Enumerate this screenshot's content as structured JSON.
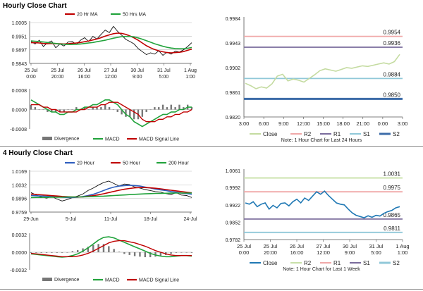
{
  "colors": {
    "ma20": "#c00000",
    "ma50": "#22a33c",
    "ma200": "#22a33c",
    "price_top": "#111111",
    "price_bottom": "#111111",
    "macd": "#22a33c",
    "signal": "#c00000",
    "divergence": "#777777",
    "close_line": "#c4dba0",
    "r2": "#f0a8a8",
    "r1": "#7a6c9c",
    "s1": "#90c8d8",
    "s2": "#3c6ca8",
    "close_line_week": "#1f78b4",
    "r2_week": "#c8e0a8",
    "r1_week": "#f0a8a8",
    "s1_week": "#7a6c9c",
    "s2_week": "#90c8d8",
    "grid": "#bbbbbb"
  },
  "hourly": {
    "title": "Hourly Close Chart",
    "price_chart": {
      "legend": [
        "20 Hr MA",
        "50 Hrs MA"
      ],
      "y_ticks": [
        "1.0005",
        "0.9951",
        "0.9897",
        "0.9843"
      ],
      "ylim": [
        0.9843,
        1.0005
      ],
      "x_ticks": [
        [
          "25 Jul",
          "0:00"
        ],
        [
          "25 Jul",
          "20:00"
        ],
        [
          "26 Jul",
          "16:00"
        ],
        [
          "27 Jul",
          "12:00"
        ],
        [
          "30 Jul",
          "9:00"
        ],
        [
          "31 Jul",
          "5:00"
        ],
        [
          "1 Aug",
          "1:00"
        ]
      ],
      "chart_data": {
        "type": "line",
        "series": [
          {
            "name": "Close",
            "values": [
              0.993,
              0.992,
              0.9935,
              0.991,
              0.9925,
              0.9932,
              0.9905,
              0.992,
              0.9912,
              0.9928,
              0.993,
              0.9918,
              0.9935,
              0.9945,
              0.993,
              0.995,
              0.994,
              0.9958,
              0.9975,
              0.9965,
              0.999,
              0.997,
              0.9955,
              0.9938,
              0.993,
              0.992,
              0.9902,
              0.989,
              0.9878,
              0.9885,
              0.988,
              0.9893,
              0.9875,
              0.9887,
              0.988,
              0.9892,
              0.9888,
              0.9897,
              0.991,
              0.9925
            ]
          },
          {
            "name": "20 Hr MA",
            "values": [
              0.9925,
              0.9925,
              0.9924,
              0.9922,
              0.9921,
              0.9922,
              0.9921,
              0.9921,
              0.992,
              0.9921,
              0.9923,
              0.9924,
              0.9926,
              0.9929,
              0.9932,
              0.9936,
              0.994,
              0.9945,
              0.9951,
              0.9956,
              0.9961,
              0.9963,
              0.9962,
              0.9958,
              0.9952,
              0.9944,
              0.9935,
              0.9924,
              0.9913,
              0.9905,
              0.9898,
              0.9893,
              0.9889,
              0.9886,
              0.9885,
              0.9886,
              0.9887,
              0.989,
              0.9895,
              0.99
            ]
          },
          {
            "name": "50 Hrs MA",
            "values": [
              0.9932,
              0.9931,
              0.993,
              0.9928,
              0.9926,
              0.9924,
              0.9922,
              0.992,
              0.9919,
              0.9918,
              0.9918,
              0.9919,
              0.992,
              0.9922,
              0.9924,
              0.9926,
              0.9929,
              0.9932,
              0.9935,
              0.9939,
              0.9943,
              0.9946,
              0.9949,
              0.995,
              0.995,
              0.9948,
              0.9944,
              0.9939,
              0.9933,
              0.9927,
              0.9921,
              0.9916,
              0.9911,
              0.9907,
              0.9904,
              0.9902,
              0.9901,
              0.9901,
              0.9903,
              0.9906
            ]
          }
        ]
      }
    },
    "macd_chart": {
      "y_ticks": [
        "0.0008",
        "0.0000",
        "-0.0008"
      ],
      "ylim": [
        -0.0008,
        0.0008
      ],
      "legend": [
        "Divergence",
        "MACD",
        "MACD Signal Line"
      ],
      "chart_data": {
        "type": "line",
        "series": [
          {
            "name": "MACD",
            "values": [
              0.0004,
              0.0003,
              0.0002,
              0.0001,
              0.0,
              -0.0001,
              -0.0001,
              -0.0002,
              -0.0002,
              -0.0001,
              -0.0001,
              0.0,
              0.0,
              0.0001,
              0.0001,
              0.0002,
              0.0002,
              0.0003,
              0.0004,
              0.0004,
              0.0003,
              0.0002,
              0.0,
              -0.0002,
              -0.0003,
              -0.0005,
              -0.0006,
              -0.0007,
              -0.0006,
              -0.0005,
              -0.0004,
              -0.0003,
              -0.0002,
              -0.0002,
              -0.0001,
              -0.0001,
              0.0,
              0.0,
              0.0001,
              0.0001
            ]
          },
          {
            "name": "MACD Signal Line",
            "values": [
              0.0002,
              0.0002,
              0.0002,
              0.0001,
              0.0001,
              0.0,
              0.0,
              -0.0001,
              -0.0001,
              -0.0001,
              -0.0001,
              -0.0001,
              0.0,
              0.0,
              0.0001,
              0.0001,
              0.0001,
              0.0002,
              0.0002,
              0.0003,
              0.0003,
              0.0003,
              0.0002,
              0.0001,
              0.0,
              -0.0001,
              -0.0002,
              -0.0004,
              -0.0005,
              -0.0005,
              -0.0005,
              -0.0004,
              -0.0004,
              -0.0003,
              -0.0003,
              -0.0002,
              -0.0002,
              -0.0001,
              -0.0001,
              0.0
            ]
          }
        ]
      }
    },
    "levels_chart": {
      "y_ticks": [
        "0.9984",
        "0.9943",
        "0.9902",
        "0.9861",
        "0.9820"
      ],
      "ylim": [
        0.982,
        0.9984
      ],
      "x_ticks": [
        "3:00",
        "6:00",
        "9:00",
        "12:00",
        "15:00",
        "18:00",
        "21:00",
        "0:00",
        "3:00"
      ],
      "labels": [
        "0.9954",
        "0.9936",
        "0.9884",
        "0.9850"
      ],
      "legend": [
        "Close",
        "R2",
        "R1",
        "S1",
        "S2"
      ],
      "note": "Note: 1 Hour Chart for Last 24 Hours",
      "chart_data": {
        "type": "line",
        "levels": {
          "R2": 0.9954,
          "R1": 0.9936,
          "S1": 0.9884,
          "S2": 0.985
        },
        "series": [
          {
            "name": "Close",
            "values": [
              0.9876,
              0.9872,
              0.9867,
              0.987,
              0.9868,
              0.9875,
              0.9888,
              0.9891,
              0.988,
              0.9883,
              0.9881,
              0.9878,
              0.9884,
              0.989,
              0.9897,
              0.99,
              0.9898,
              0.9896,
              0.9899,
              0.9902,
              0.9901,
              0.9903,
              0.9905,
              0.9904,
              0.9906,
              0.9908,
              0.991,
              0.9908,
              0.9912,
              0.9924
            ]
          }
        ]
      }
    }
  },
  "four_hourly": {
    "title": "4 Hourly Close Chart",
    "price_chart": {
      "legend": [
        "20 Hour",
        "50 Hour",
        "200 Hour"
      ],
      "y_ticks": [
        "1.0169",
        "1.0032",
        "0.9896",
        "0.9759"
      ],
      "ylim": [
        0.9759,
        1.0169
      ],
      "x_ticks": [
        "29-Jun",
        "5-Jul",
        "11-Jul",
        "18-Jul",
        "24-Jul"
      ],
      "chart_data": {
        "type": "line",
        "series": [
          {
            "name": "Close",
            "values": [
              0.9955,
              0.993,
              0.991,
              0.99,
              0.9915,
              0.989,
              0.987,
              0.9885,
              0.9905,
              0.992,
              0.994,
              0.9975,
              1.0,
              1.003,
              1.0055,
              1.007,
              1.0045,
              1.002,
              1.004,
              1.0035,
              1.001,
              1.0,
              0.9985,
              0.9975,
              0.9965,
              0.996,
              0.9945,
              0.9935,
              0.9955,
              0.993,
              0.9925,
              0.9905
            ]
          },
          {
            "name": "20 Hour",
            "values": [
              0.9925,
              0.9923,
              0.992,
              0.9918,
              0.9915,
              0.9912,
              0.9908,
              0.9905,
              0.9905,
              0.9908,
              0.9915,
              0.9925,
              0.9938,
              0.9955,
              0.9975,
              0.9995,
              1.001,
              1.002,
              1.0025,
              1.0028,
              1.0025,
              1.002,
              1.001,
              1.0,
              0.999,
              0.9982,
              0.9975,
              0.9965,
              0.9958,
              0.995,
              0.9945,
              0.9938
            ]
          },
          {
            "name": "50 Hour",
            "values": [
              0.994,
              0.9936,
              0.9932,
              0.9928,
              0.9924,
              0.992,
              0.9916,
              0.9913,
              0.991,
              0.991,
              0.9912,
              0.9917,
              0.9924,
              0.9933,
              0.9943,
              0.9955,
              0.9967,
              0.9978,
              0.9988,
              0.9996,
              1.0002,
              1.0005,
              1.0005,
              1.0002,
              0.9998,
              0.9992,
              0.9985,
              0.9978,
              0.9972,
              0.9965,
              0.9958,
              0.9952
            ]
          },
          {
            "name": "200 Hour",
            "values": [
              0.9905,
              0.9906,
              0.9906,
              0.9907,
              0.9908,
              0.9908,
              0.9909,
              0.991,
              0.991,
              0.9911,
              0.9912,
              0.9913,
              0.9915,
              0.9917,
              0.9919,
              0.9922,
              0.9925,
              0.9928,
              0.9931,
              0.9934,
              0.9937,
              0.994,
              0.9942,
              0.9944,
              0.9946,
              0.9947,
              0.9948,
              0.9949,
              0.995,
              0.995,
              0.995,
              0.995
            ]
          }
        ]
      }
    },
    "macd_chart": {
      "y_ticks": [
        "0.0032",
        "0.0000",
        "-0.0032"
      ],
      "ylim": [
        -0.0032,
        0.0032
      ],
      "legend": [
        "Divergence",
        "MACD",
        "MACD Signal Line"
      ],
      "chart_data": {
        "type": "line",
        "series": [
          {
            "name": "MACD",
            "values": [
              -0.0003,
              -0.0004,
              -0.0005,
              -0.0006,
              -0.0007,
              -0.0008,
              -0.0009,
              -0.0008,
              -0.0006,
              -0.0003,
              0.0002,
              0.0008,
              0.0015,
              0.0022,
              0.0027,
              0.0028,
              0.0026,
              0.0022,
              0.0018,
              0.0014,
              0.001,
              0.0006,
              0.0002,
              -0.0002,
              -0.0005,
              -0.0007,
              -0.0008,
              -0.0008,
              -0.0007,
              -0.0006,
              -0.0006,
              -0.0007
            ]
          },
          {
            "name": "MACD Signal Line",
            "values": [
              -0.0002,
              -0.0003,
              -0.0004,
              -0.0005,
              -0.0006,
              -0.0007,
              -0.0008,
              -0.0008,
              -0.0008,
              -0.0007,
              -0.0005,
              -0.0002,
              0.0002,
              0.0007,
              0.0012,
              0.0017,
              0.002,
              0.0021,
              0.0021,
              0.0019,
              0.0017,
              0.0014,
              0.0011,
              0.0007,
              0.0003,
              0.0,
              -0.0003,
              -0.0005,
              -0.0006,
              -0.0006,
              -0.0006,
              -0.0006
            ]
          }
        ]
      }
    },
    "levels_chart": {
      "y_ticks": [
        "1.0061",
        "0.9992",
        "0.9922",
        "0.9852",
        "0.9782"
      ],
      "ylim": [
        0.9782,
        1.0061
      ],
      "x_ticks": [
        [
          "25 Jul",
          "0:00"
        ],
        [
          "25 Jul",
          "20:00"
        ],
        [
          "26 Jul",
          "16:00"
        ],
        [
          "27 Jul",
          "12:00"
        ],
        [
          "30 Jul",
          "9:00"
        ],
        [
          "31 Jul",
          "5:00"
        ],
        [
          "1 Aug",
          "1:00"
        ]
      ],
      "labels": [
        "1.0031",
        "0.9975",
        "0.9865",
        "0.9811"
      ],
      "legend": [
        "Close",
        "R2",
        "R1",
        "S1",
        "S2"
      ],
      "note": "Note: 1 Hour Chart for Last 1 Week",
      "chart_data": {
        "type": "line",
        "levels": {
          "R2": 1.0031,
          "R1": 0.9975,
          "S1": 0.9865,
          "S2": 0.9811
        },
        "series": [
          {
            "name": "Close",
            "values": [
              0.993,
              0.9925,
              0.9935,
              0.9915,
              0.9925,
              0.993,
              0.9905,
              0.992,
              0.991,
              0.9928,
              0.993,
              0.9918,
              0.9935,
              0.9945,
              0.993,
              0.995,
              0.994,
              0.9958,
              0.9975,
              0.9965,
              0.9978,
              0.996,
              0.9945,
              0.993,
              0.9925,
              0.9922,
              0.9905,
              0.989,
              0.988,
              0.9875,
              0.987,
              0.9878,
              0.9872,
              0.988,
              0.9877,
              0.9888,
              0.9895,
              0.99,
              0.991,
              0.9915
            ]
          }
        ]
      }
    }
  }
}
